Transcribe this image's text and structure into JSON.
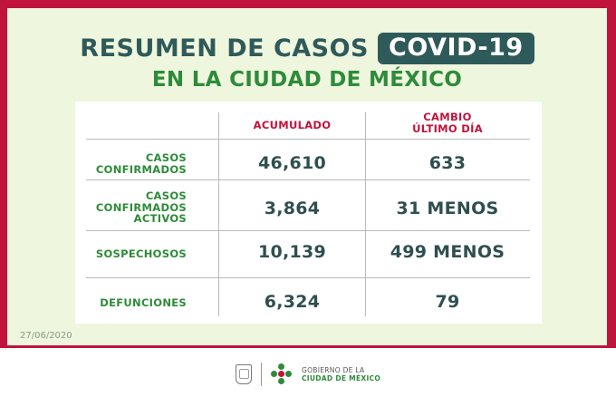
{
  "header": {
    "title": "RESUMEN DE CASOS",
    "badge": "COVID-19",
    "subtitle": "EN LA CIUDAD DE MÉXICO"
  },
  "table": {
    "columns": {
      "accumulated": "ACUMULADO",
      "change_line1": "CAMBIO",
      "change_line2": "ÚLTIMO DÍA"
    },
    "rows": [
      {
        "label_lines": [
          "CASOS",
          "CONFIRMADOS"
        ],
        "accumulated": "46,610",
        "change": "633"
      },
      {
        "label_lines": [
          "CASOS",
          "CONFIRMADOS",
          "ACTIVOS"
        ],
        "accumulated": "3,864",
        "change": "31 MENOS"
      },
      {
        "label_lines": [
          "SOSPECHOSOS"
        ],
        "accumulated": "10,139",
        "change": "499 MENOS"
      },
      {
        "label_lines": [
          "DEFUNCIONES"
        ],
        "accumulated": "6,324",
        "change": "79"
      }
    ]
  },
  "date": "27/06/2020",
  "footer": {
    "logo_line1": "GOBIERNO DE LA",
    "logo_line2": "CIUDAD DE MÉXICO"
  },
  "colors": {
    "frame": "#c0143c",
    "panel": "#eef6dd",
    "title": "#2f5a5a",
    "green": "#2e8b3a",
    "red": "#c0143c"
  }
}
